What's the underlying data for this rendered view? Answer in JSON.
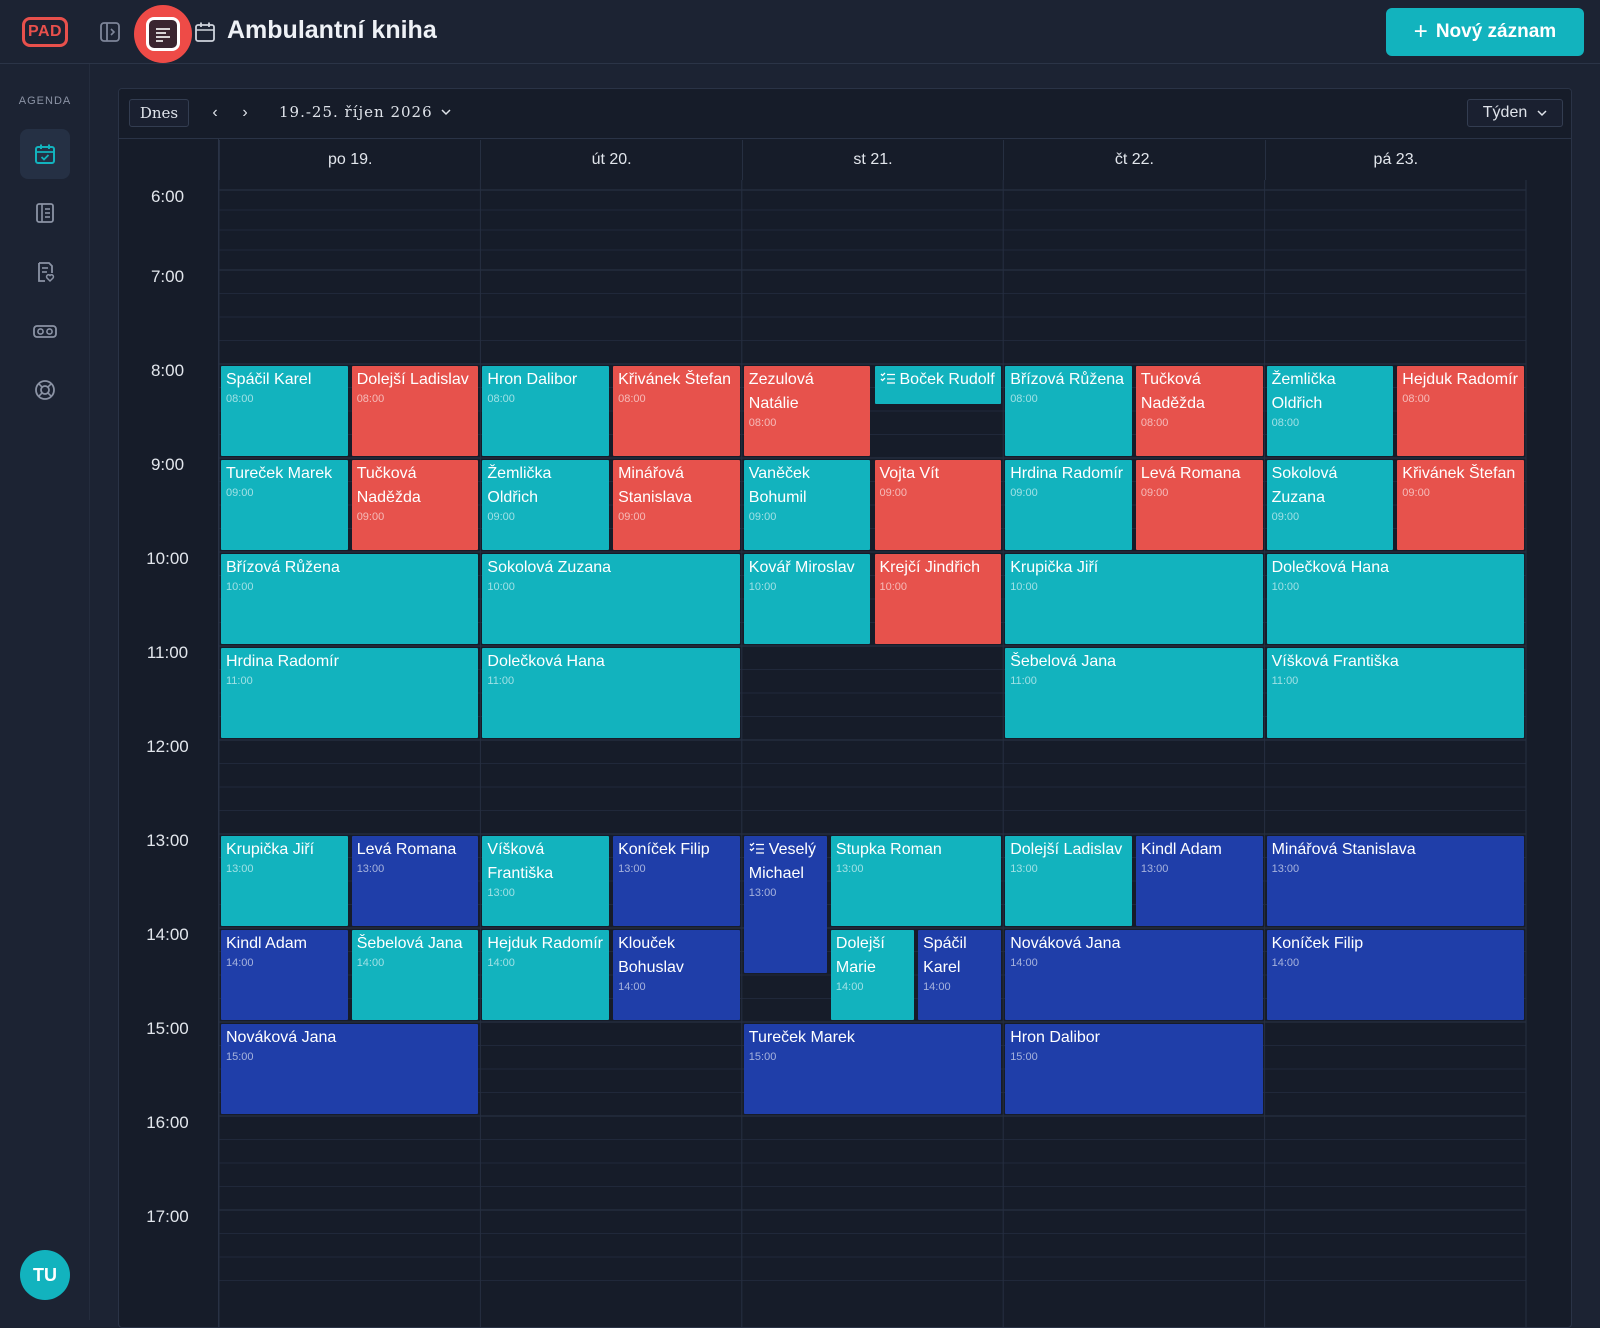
{
  "header": {
    "logo": "PAD",
    "title": "Ambulantní kniha",
    "new_button_label": "Nový záznam"
  },
  "sidebar": {
    "section_label": "AGENDA",
    "items": [
      {
        "icon": "calendar-check-icon",
        "active": true
      },
      {
        "icon": "book-list-icon",
        "active": false
      },
      {
        "icon": "document-heart-icon",
        "active": false
      },
      {
        "icon": "glasses-icon",
        "active": false
      },
      {
        "icon": "lifebuoy-icon",
        "active": false
      }
    ],
    "avatar_initials": "TU"
  },
  "toolbar": {
    "today_label": "Dnes",
    "prev": "‹",
    "next": "›",
    "date_range": "19.-25. říjen 2026",
    "view_label": "Týden"
  },
  "days": [
    "po 19.",
    "út 20.",
    "st 21.",
    "čt 22.",
    "pá 23."
  ],
  "hours": [
    "6:00",
    "7:00",
    "8:00",
    "9:00",
    "10:00",
    "11:00",
    "12:00",
    "13:00",
    "14:00",
    "15:00",
    "16:00",
    "17:00"
  ],
  "colors": {
    "teal": "#12b3be",
    "red": "#e7524c",
    "blue": "#1f3ea9",
    "accent": "#12b3be"
  },
  "events": [
    {
      "day": 0,
      "col": 0,
      "cols": 2,
      "start": 8,
      "dur": 1,
      "color": "teal",
      "title": "Spáčil Karel",
      "time": "08:00"
    },
    {
      "day": 0,
      "col": 1,
      "cols": 2,
      "start": 8,
      "dur": 1,
      "color": "red",
      "title": "Dolejší Ladislav",
      "time": "08:00"
    },
    {
      "day": 1,
      "col": 0,
      "cols": 2,
      "start": 8,
      "dur": 1,
      "color": "teal",
      "title": "Hron Dalibor",
      "time": "08:00"
    },
    {
      "day": 1,
      "col": 1,
      "cols": 2,
      "start": 8,
      "dur": 1,
      "color": "red",
      "title": "Křivánek Štefan",
      "time": "08:00"
    },
    {
      "day": 2,
      "col": 0,
      "cols": 2,
      "start": 8,
      "dur": 1,
      "color": "red",
      "title": "Zezulová Natálie",
      "time": "08:00"
    },
    {
      "day": 2,
      "col": 1,
      "cols": 2,
      "start": 8,
      "dur": 0.45,
      "color": "teal",
      "title": "Boček Rudolf",
      "time": "",
      "task": true
    },
    {
      "day": 3,
      "col": 0,
      "cols": 2,
      "start": 8,
      "dur": 1,
      "color": "teal",
      "title": "Břízová Růžena",
      "time": "08:00"
    },
    {
      "day": 3,
      "col": 1,
      "cols": 2,
      "start": 8,
      "dur": 1,
      "color": "red",
      "title": "Tučková Naděžda",
      "time": "08:00"
    },
    {
      "day": 4,
      "col": 0,
      "cols": 2,
      "start": 8,
      "dur": 1,
      "color": "teal",
      "title": "Žemlička Oldřich",
      "time": "08:00"
    },
    {
      "day": 4,
      "col": 1,
      "cols": 2,
      "start": 8,
      "dur": 1,
      "color": "red",
      "title": "Hejduk Radomír",
      "time": "08:00"
    },
    {
      "day": 0,
      "col": 0,
      "cols": 2,
      "start": 9,
      "dur": 1,
      "color": "teal",
      "title": "Tureček Marek",
      "time": "09:00"
    },
    {
      "day": 0,
      "col": 1,
      "cols": 2,
      "start": 9,
      "dur": 1,
      "color": "red",
      "title": "Tučková Naděžda",
      "time": "09:00"
    },
    {
      "day": 1,
      "col": 0,
      "cols": 2,
      "start": 9,
      "dur": 1,
      "color": "teal",
      "title": "Žemlička Oldřich",
      "time": "09:00"
    },
    {
      "day": 1,
      "col": 1,
      "cols": 2,
      "start": 9,
      "dur": 1,
      "color": "red",
      "title": "Minářová Stanislava",
      "time": "09:00"
    },
    {
      "day": 2,
      "col": 0,
      "cols": 2,
      "start": 9,
      "dur": 1,
      "color": "teal",
      "title": "Vaněček Bohumil",
      "time": "09:00"
    },
    {
      "day": 2,
      "col": 1,
      "cols": 2,
      "start": 9,
      "dur": 1,
      "color": "red",
      "title": "Vojta Vít",
      "time": "09:00"
    },
    {
      "day": 3,
      "col": 0,
      "cols": 2,
      "start": 9,
      "dur": 1,
      "color": "teal",
      "title": "Hrdina Radomír",
      "time": "09:00"
    },
    {
      "day": 3,
      "col": 1,
      "cols": 2,
      "start": 9,
      "dur": 1,
      "color": "red",
      "title": "Levá Romana",
      "time": "09:00"
    },
    {
      "day": 4,
      "col": 0,
      "cols": 2,
      "start": 9,
      "dur": 1,
      "color": "teal",
      "title": "Sokolová Zuzana",
      "time": "09:00"
    },
    {
      "day": 4,
      "col": 1,
      "cols": 2,
      "start": 9,
      "dur": 1,
      "color": "red",
      "title": "Křivánek Štefan",
      "time": "09:00"
    },
    {
      "day": 0,
      "col": 0,
      "cols": 1,
      "start": 10,
      "dur": 1,
      "color": "teal",
      "title": "Břízová Růžena",
      "time": "10:00"
    },
    {
      "day": 1,
      "col": 0,
      "cols": 1,
      "start": 10,
      "dur": 1,
      "color": "teal",
      "title": "Sokolová Zuzana",
      "time": "10:00"
    },
    {
      "day": 2,
      "col": 0,
      "cols": 2,
      "start": 10,
      "dur": 1,
      "color": "teal",
      "title": "Kovář Miroslav",
      "time": "10:00"
    },
    {
      "day": 2,
      "col": 1,
      "cols": 2,
      "start": 10,
      "dur": 1,
      "color": "red",
      "title": "Krejčí Jindřich",
      "time": "10:00"
    },
    {
      "day": 3,
      "col": 0,
      "cols": 1,
      "start": 10,
      "dur": 1,
      "color": "teal",
      "title": "Krupička Jiří",
      "time": "10:00"
    },
    {
      "day": 4,
      "col": 0,
      "cols": 1,
      "start": 10,
      "dur": 1,
      "color": "teal",
      "title": "Dolečková Hana",
      "time": "10:00"
    },
    {
      "day": 0,
      "col": 0,
      "cols": 1,
      "start": 11,
      "dur": 1,
      "color": "teal",
      "title": "Hrdina Radomír",
      "time": "11:00"
    },
    {
      "day": 1,
      "col": 0,
      "cols": 1,
      "start": 11,
      "dur": 1,
      "color": "teal",
      "title": "Dolečková Hana",
      "time": "11:00"
    },
    {
      "day": 3,
      "col": 0,
      "cols": 1,
      "start": 11,
      "dur": 1,
      "color": "teal",
      "title": "Šebelová Jana",
      "time": "11:00"
    },
    {
      "day": 4,
      "col": 0,
      "cols": 1,
      "start": 11,
      "dur": 1,
      "color": "teal",
      "title": "Víšková Františka",
      "time": "11:00"
    },
    {
      "day": 0,
      "col": 0,
      "cols": 2,
      "start": 13,
      "dur": 1,
      "color": "teal",
      "title": "Krupička Jiří",
      "time": "13:00"
    },
    {
      "day": 0,
      "col": 1,
      "cols": 2,
      "start": 13,
      "dur": 1,
      "color": "blue",
      "title": "Levá Romana",
      "time": "13:00"
    },
    {
      "day": 1,
      "col": 0,
      "cols": 2,
      "start": 13,
      "dur": 1,
      "color": "teal",
      "title": "Víšková Františka",
      "time": "13:00"
    },
    {
      "day": 1,
      "col": 1,
      "cols": 2,
      "start": 13,
      "dur": 1,
      "color": "blue",
      "title": "Koníček Filip",
      "time": "13:00"
    },
    {
      "day": 2,
      "col": 0,
      "cols": 3,
      "start": 13,
      "dur": 1.5,
      "color": "blue",
      "title": "Veselý Michael",
      "time": "13:00",
      "task": true
    },
    {
      "day": 2,
      "col": 1,
      "cols": 1.5,
      "start": 13,
      "dur": 1,
      "color": "teal",
      "title": "Stupka Roman",
      "time": "13:00",
      "offset": true
    },
    {
      "day": 3,
      "col": 0,
      "cols": 2,
      "start": 13,
      "dur": 1,
      "color": "teal",
      "title": "Dolejší Ladislav",
      "time": "13:00"
    },
    {
      "day": 3,
      "col": 1,
      "cols": 2,
      "start": 13,
      "dur": 1,
      "color": "blue",
      "title": "Kindl Adam",
      "time": "13:00"
    },
    {
      "day": 4,
      "col": 0,
      "cols": 1,
      "start": 13,
      "dur": 1,
      "color": "blue",
      "title": "Minářová Stanislava",
      "time": "13:00"
    },
    {
      "day": 0,
      "col": 0,
      "cols": 2,
      "start": 14,
      "dur": 1,
      "color": "blue",
      "title": "Kindl Adam",
      "time": "14:00"
    },
    {
      "day": 0,
      "col": 1,
      "cols": 2,
      "start": 14,
      "dur": 1,
      "color": "teal",
      "title": "Šebelová Jana",
      "time": "14:00"
    },
    {
      "day": 1,
      "col": 0,
      "cols": 2,
      "start": 14,
      "dur": 1,
      "color": "teal",
      "title": "Hejduk Radomír",
      "time": "14:00"
    },
    {
      "day": 1,
      "col": 1,
      "cols": 2,
      "start": 14,
      "dur": 1,
      "color": "blue",
      "title": "Klouček Bohuslav",
      "time": "14:00"
    },
    {
      "day": 2,
      "col": 1,
      "cols": 3,
      "start": 14,
      "dur": 1,
      "color": "teal",
      "title": "Dolejší Marie",
      "time": "14:00"
    },
    {
      "day": 2,
      "col": 2,
      "cols": 3,
      "start": 14,
      "dur": 1,
      "color": "blue",
      "title": "Spáčil Karel",
      "time": "14:00"
    },
    {
      "day": 3,
      "col": 0,
      "cols": 1,
      "start": 14,
      "dur": 1,
      "color": "blue",
      "title": "Nováková Jana",
      "time": "14:00"
    },
    {
      "day": 4,
      "col": 0,
      "cols": 1,
      "start": 14,
      "dur": 1,
      "color": "blue",
      "title": "Koníček Filip",
      "time": "14:00"
    },
    {
      "day": 0,
      "col": 0,
      "cols": 1,
      "start": 15,
      "dur": 1,
      "color": "blue",
      "title": "Nováková Jana",
      "time": "15:00"
    },
    {
      "day": 2,
      "col": 0,
      "cols": 1,
      "start": 15,
      "dur": 1,
      "color": "blue",
      "title": "Tureček Marek",
      "time": "15:00"
    },
    {
      "day": 3,
      "col": 0,
      "cols": 1,
      "start": 15,
      "dur": 1,
      "color": "blue",
      "title": "Hron Dalibor",
      "time": "15:00"
    }
  ]
}
